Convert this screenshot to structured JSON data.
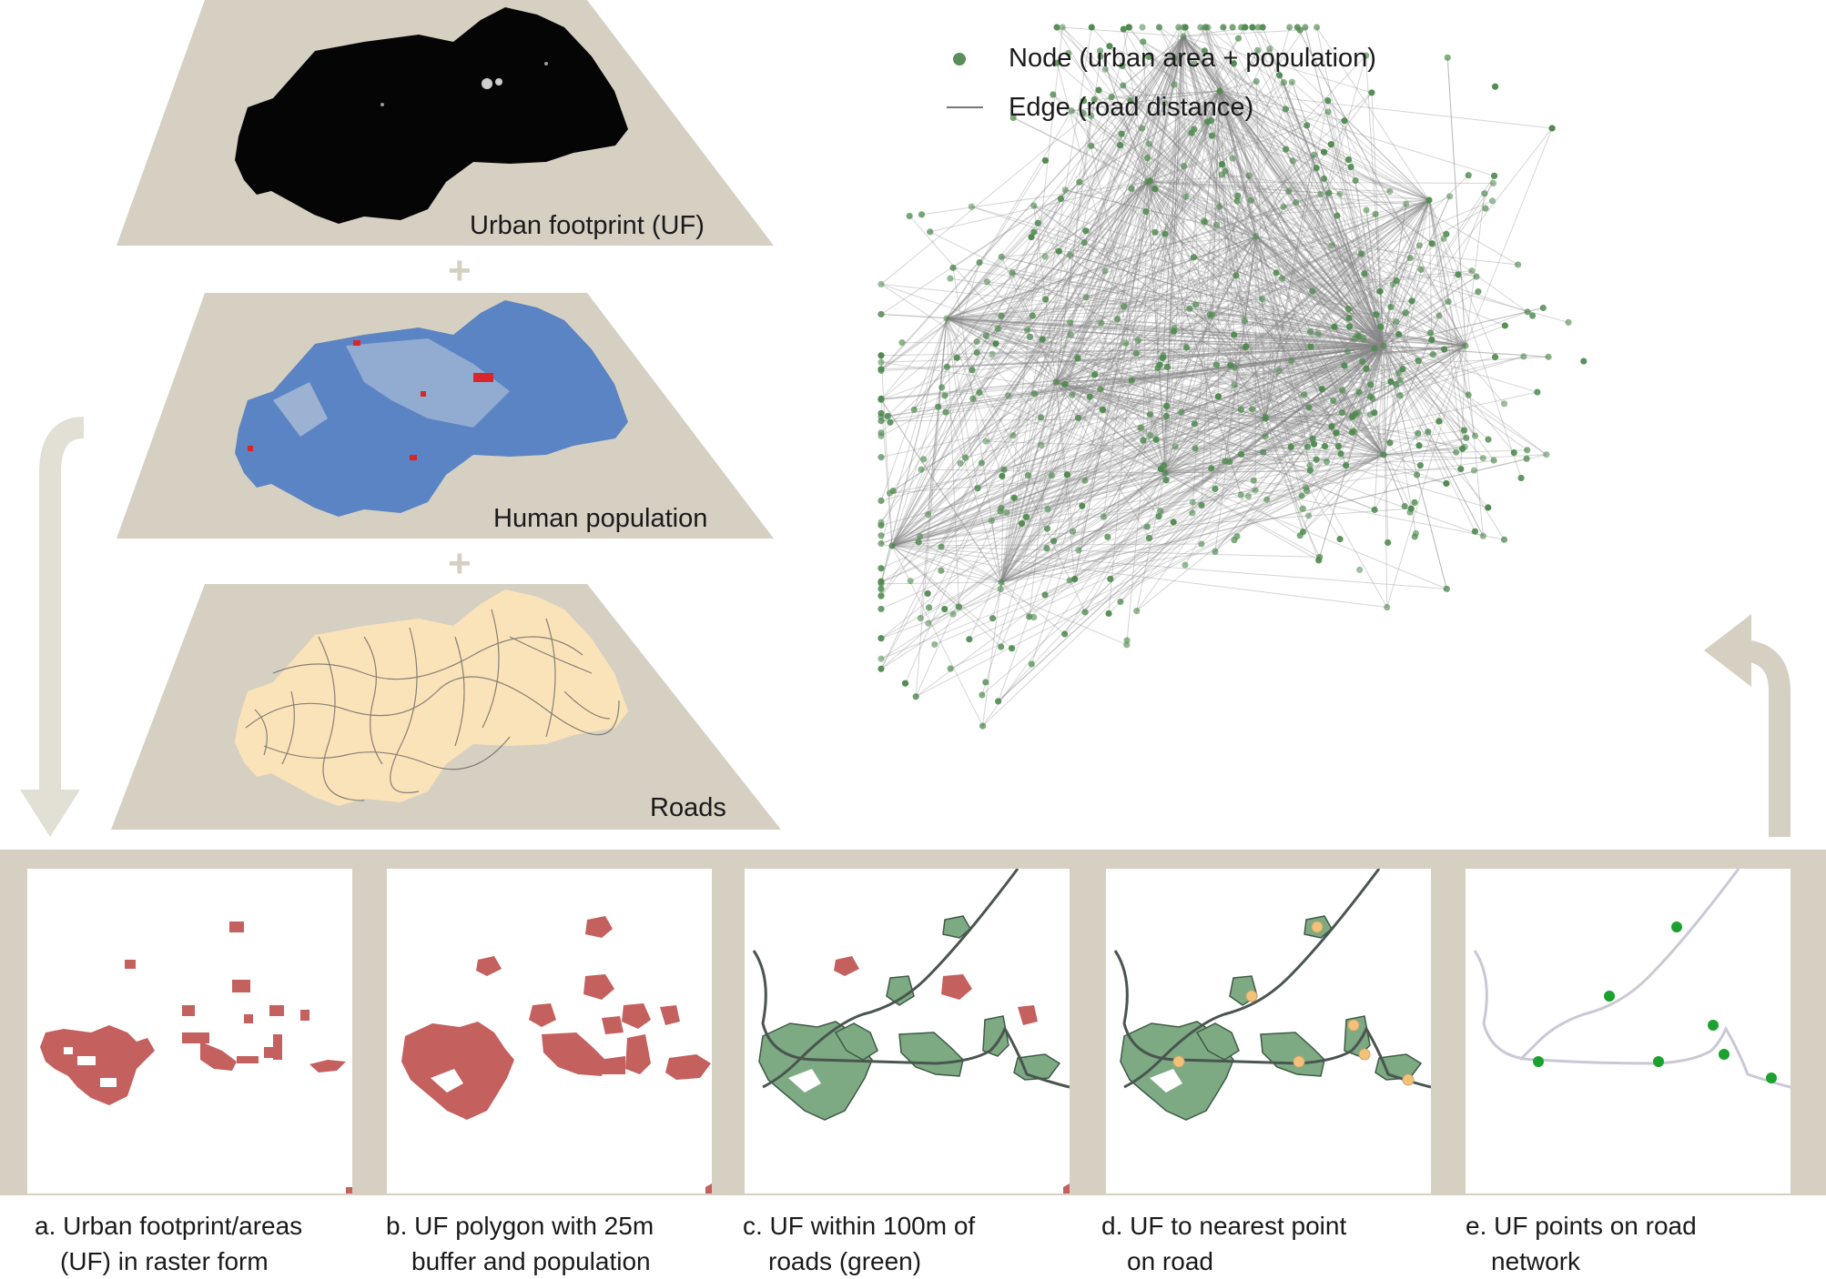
{
  "layers": [
    {
      "label": "Urban footprint (UF)"
    },
    {
      "label": "Human population"
    },
    {
      "label": "Roads"
    }
  ],
  "plus_symbol": "+",
  "legend": {
    "node_label": "Node (urban area +  population)",
    "edge_label": "Edge (road distance)",
    "node_color": "#4f8a4f",
    "edge_color": "#888888"
  },
  "steps": [
    {
      "line1": "a. Urban footprint/areas",
      "line2": "(UF) in raster form"
    },
    {
      "line1": "b. UF polygon with 25m",
      "line2": "buffer and population"
    },
    {
      "line1": "c. UF within 100m of",
      "line2": "roads (green)"
    },
    {
      "line1": "d. UF to nearest point",
      "line2": "on road"
    },
    {
      "line1": "e. UF points on road",
      "line2": "network"
    }
  ],
  "colors": {
    "band": "#d6d0c2",
    "uf_red": "#c4605e",
    "uf_green": "#7daa83",
    "road": "#4a5550",
    "nearest_point": "#f2c27a",
    "network_point": "#1aa12e",
    "network_road": "#c9c9d6"
  }
}
